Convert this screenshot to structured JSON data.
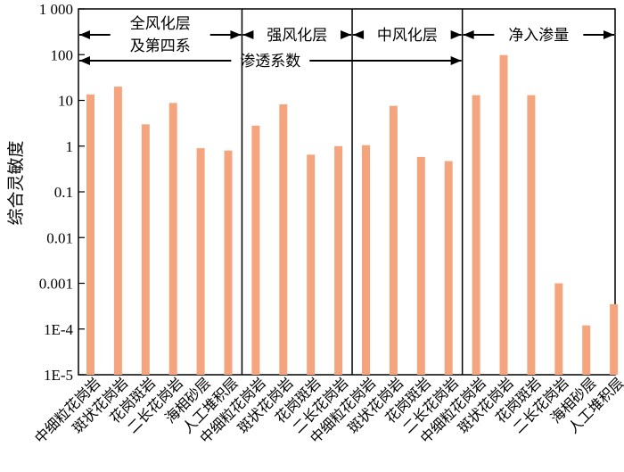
{
  "chart_data": {
    "type": "bar",
    "ylabel": "综合灵敏度",
    "yscale": "log",
    "ylim": [
      1e-05,
      1000
    ],
    "yticks": [
      {
        "value": 1000,
        "label": "1 000"
      },
      {
        "value": 100,
        "label": "100"
      },
      {
        "value": 10,
        "label": "10"
      },
      {
        "value": 1,
        "label": "1"
      },
      {
        "value": 0.1,
        "label": "0.1"
      },
      {
        "value": 0.01,
        "label": "0.01"
      },
      {
        "value": 0.001,
        "label": "0.001"
      },
      {
        "value": 0.0001,
        "label": "1E-4"
      },
      {
        "value": 1e-05,
        "label": "1E-5"
      }
    ],
    "bar_color": "#F4A57E",
    "groups": [
      {
        "label": "全风化层",
        "label2": "及第四系",
        "categories": [
          "中细粒花岗岩",
          "斑状花岗岩",
          "花岗斑岩",
          "二长花岗岩",
          "海相砂层",
          "人工堆积层"
        ],
        "values": [
          13.5,
          20,
          3.0,
          8.8,
          0.9,
          0.8
        ]
      },
      {
        "label": "强风化层",
        "categories": [
          "中细粒花岗岩",
          "斑状花岗岩",
          "花岗斑岩",
          "二长花岗岩"
        ],
        "values": [
          2.8,
          8.2,
          0.65,
          1.0
        ]
      },
      {
        "label": "中风化层",
        "categories": [
          "中细粒花岗岩",
          "斑状花岗岩",
          "花岗斑岩",
          "二长花岗岩"
        ],
        "values": [
          1.05,
          7.6,
          0.58,
          0.47
        ]
      },
      {
        "label": "净入渗量",
        "categories": [
          "中细粒花岗岩",
          "斑状花岗岩",
          "花岗斑岩",
          "二长花岗岩",
          "海相砂层",
          "人工堆积层"
        ],
        "values": [
          13.0,
          98,
          13.0,
          0.001,
          0.00012,
          0.00035
        ]
      }
    ],
    "span_annotation": {
      "label": "渗透系数",
      "from_group": 0,
      "to_group": 2
    }
  }
}
